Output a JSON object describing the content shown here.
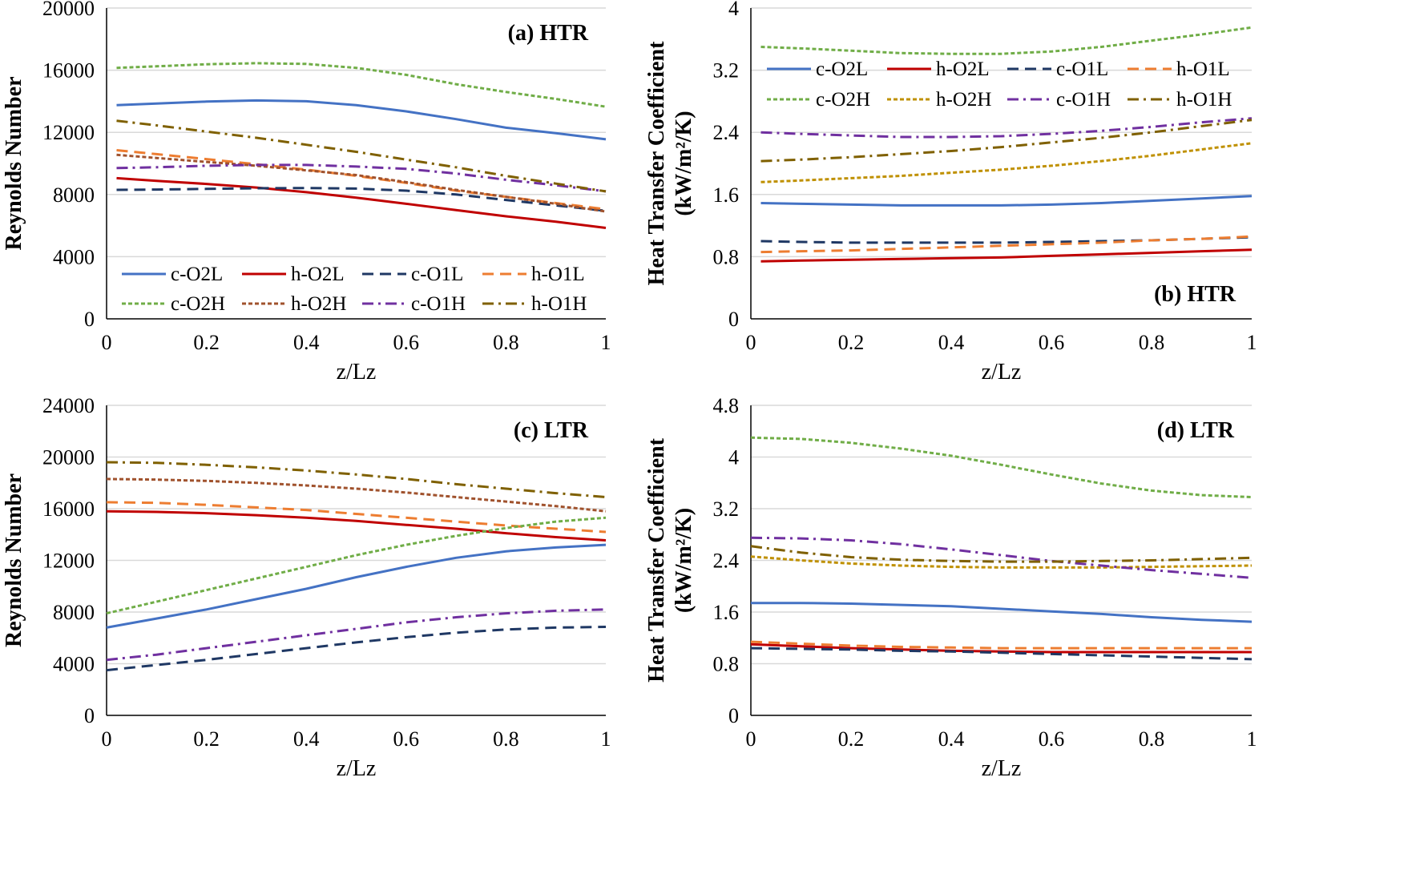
{
  "chart_data": [
    {
      "id": "a",
      "type": "line",
      "panel_label": "(a) HTR",
      "panel_label_pos": "top-right",
      "xlabel": "z/Lz",
      "ylabel": "Reynolds Number",
      "ylabel_lines": [
        "Reynolds Number"
      ],
      "xlim": [
        0,
        1
      ],
      "ylim": [
        0,
        20000
      ],
      "xticks": [
        "0",
        "0.2",
        "0.4",
        "0.6",
        "0.8",
        "1"
      ],
      "yticks": [
        "0",
        "4000",
        "8000",
        "12000",
        "16000",
        "20000"
      ],
      "legend_pos": "bottom",
      "x": [
        0.02,
        0.1,
        0.2,
        0.3,
        0.4,
        0.5,
        0.6,
        0.7,
        0.8,
        0.9,
        1.0
      ],
      "series": [
        {
          "name": "c-O2L",
          "style": "solid",
          "color": "#4472c4",
          "values": [
            13750,
            13850,
            13980,
            14050,
            14000,
            13750,
            13350,
            12850,
            12300,
            11950,
            11550
          ]
        },
        {
          "name": "h-O2L",
          "style": "solid",
          "color": "#c00000",
          "values": [
            9050,
            8880,
            8680,
            8450,
            8150,
            7800,
            7400,
            7000,
            6600,
            6250,
            5850
          ]
        },
        {
          "name": "c-O1L",
          "style": "dash",
          "color": "#1f3864",
          "values": [
            8300,
            8320,
            8360,
            8400,
            8420,
            8380,
            8250,
            8000,
            7650,
            7300,
            6950
          ]
        },
        {
          "name": "h-O1L",
          "style": "dash",
          "color": "#ed7d31",
          "values": [
            10850,
            10600,
            10280,
            9950,
            9600,
            9200,
            8750,
            8250,
            7850,
            7450,
            7050
          ]
        },
        {
          "name": "c-O2H",
          "style": "dotted-dash",
          "color": "#70ad47",
          "values": [
            16150,
            16250,
            16380,
            16450,
            16400,
            16150,
            15700,
            15100,
            14600,
            14150,
            13650
          ]
        },
        {
          "name": "h-O2H",
          "style": "dotted-dash",
          "color": "#a0522d",
          "values": [
            10550,
            10350,
            10100,
            9850,
            9550,
            9250,
            8800,
            8300,
            7850,
            7400,
            6900
          ]
        },
        {
          "name": "c-O1H",
          "style": "dashdot",
          "color": "#7030a0",
          "values": [
            9700,
            9750,
            9850,
            9900,
            9900,
            9800,
            9650,
            9350,
            8950,
            8600,
            8200
          ]
        },
        {
          "name": "h-O1H",
          "style": "dashdot",
          "color": "#7f6000",
          "values": [
            12750,
            12450,
            12050,
            11650,
            11200,
            10750,
            10250,
            9750,
            9200,
            8700,
            8200
          ]
        }
      ]
    },
    {
      "id": "b",
      "type": "line",
      "panel_label": "(b) HTR",
      "panel_label_pos": "bottom-right",
      "xlabel": "z/Lz",
      "ylabel": "Heat Transfer Coefficient (kW/m²/K)",
      "ylabel_lines": [
        "Heat Transfer Coefficient",
        "(kW/m²/K)"
      ],
      "xlim": [
        0,
        1
      ],
      "ylim": [
        0,
        4
      ],
      "xticks": [
        "0",
        "0.2",
        "0.4",
        "0.6",
        "0.8",
        "1"
      ],
      "yticks": [
        "0",
        "0.8",
        "1.6",
        "2.4",
        "3.2",
        "4"
      ],
      "legend_pos": "top",
      "x": [
        0.02,
        0.1,
        0.2,
        0.3,
        0.4,
        0.5,
        0.6,
        0.7,
        0.8,
        0.9,
        1.0
      ],
      "series": [
        {
          "name": "c-O2L",
          "style": "solid",
          "color": "#4472c4",
          "values": [
            1.49,
            1.48,
            1.47,
            1.46,
            1.46,
            1.46,
            1.47,
            1.49,
            1.52,
            1.55,
            1.58
          ]
        },
        {
          "name": "h-O2L",
          "style": "solid",
          "color": "#c00000",
          "values": [
            0.74,
            0.75,
            0.76,
            0.77,
            0.78,
            0.79,
            0.81,
            0.83,
            0.85,
            0.87,
            0.89
          ]
        },
        {
          "name": "c-O1L",
          "style": "dash",
          "color": "#1f3864",
          "values": [
            1.0,
            0.99,
            0.98,
            0.98,
            0.98,
            0.98,
            0.99,
            1.0,
            1.01,
            1.03,
            1.05
          ]
        },
        {
          "name": "h-O1L",
          "style": "dash",
          "color": "#ed7d31",
          "values": [
            0.86,
            0.87,
            0.88,
            0.9,
            0.92,
            0.94,
            0.96,
            0.98,
            1.01,
            1.03,
            1.06
          ]
        },
        {
          "name": "c-O2H",
          "style": "dotted-dash",
          "color": "#70ad47",
          "values": [
            3.5,
            3.48,
            3.45,
            3.42,
            3.41,
            3.41,
            3.44,
            3.5,
            3.58,
            3.66,
            3.75
          ]
        },
        {
          "name": "h-O2H",
          "style": "dotted-dash",
          "color": "#bf9000",
          "values": [
            1.76,
            1.78,
            1.81,
            1.84,
            1.88,
            1.92,
            1.97,
            2.03,
            2.1,
            2.18,
            2.26
          ]
        },
        {
          "name": "c-O1H",
          "style": "dashdot",
          "color": "#7030a0",
          "values": [
            2.4,
            2.38,
            2.36,
            2.34,
            2.34,
            2.35,
            2.38,
            2.42,
            2.47,
            2.53,
            2.58
          ]
        },
        {
          "name": "h-O1H",
          "style": "dashdot",
          "color": "#7f6000",
          "values": [
            2.03,
            2.05,
            2.08,
            2.12,
            2.16,
            2.21,
            2.27,
            2.33,
            2.4,
            2.48,
            2.56
          ]
        }
      ]
    },
    {
      "id": "c",
      "type": "line",
      "panel_label": "(c) LTR",
      "panel_label_pos": "top-right",
      "xlabel": "z/Lz",
      "ylabel": "Reynolds Number",
      "ylabel_lines": [
        "Reynolds Number"
      ],
      "xlim": [
        0,
        1
      ],
      "ylim": [
        0,
        24000
      ],
      "xticks": [
        "0",
        "0.2",
        "0.4",
        "0.6",
        "0.8",
        "1"
      ],
      "yticks": [
        "0",
        "4000",
        "8000",
        "12000",
        "16000",
        "20000",
        "24000"
      ],
      "legend_pos": "none",
      "x": [
        0.0,
        0.1,
        0.2,
        0.3,
        0.4,
        0.5,
        0.6,
        0.7,
        0.8,
        0.9,
        1.0
      ],
      "series": [
        {
          "name": "c-O2L",
          "style": "solid",
          "color": "#4472c4",
          "values": [
            6800,
            7500,
            8200,
            9000,
            9800,
            10700,
            11500,
            12200,
            12700,
            13000,
            13200
          ]
        },
        {
          "name": "h-O2L",
          "style": "solid",
          "color": "#c00000",
          "values": [
            15800,
            15750,
            15650,
            15500,
            15300,
            15050,
            14750,
            14450,
            14100,
            13800,
            13550
          ]
        },
        {
          "name": "c-O1L",
          "style": "dash",
          "color": "#1f3864",
          "values": [
            3500,
            3900,
            4300,
            4750,
            5200,
            5650,
            6050,
            6400,
            6650,
            6800,
            6850
          ]
        },
        {
          "name": "h-O1L",
          "style": "dash",
          "color": "#ed7d31",
          "values": [
            16500,
            16450,
            16300,
            16100,
            15900,
            15600,
            15300,
            15000,
            14700,
            14450,
            14200
          ]
        },
        {
          "name": "c-O2H",
          "style": "dotted-dash",
          "color": "#70ad47",
          "values": [
            7900,
            8800,
            9700,
            10600,
            11500,
            12400,
            13200,
            13900,
            14500,
            15000,
            15300
          ]
        },
        {
          "name": "h-O2H",
          "style": "dotted-dash",
          "color": "#a0522d",
          "values": [
            18300,
            18250,
            18150,
            18000,
            17800,
            17550,
            17250,
            16900,
            16550,
            16200,
            15800
          ]
        },
        {
          "name": "c-O1H",
          "style": "dashdot",
          "color": "#7030a0",
          "values": [
            4300,
            4700,
            5200,
            5700,
            6200,
            6700,
            7200,
            7600,
            7900,
            8100,
            8200
          ]
        },
        {
          "name": "h-O1H",
          "style": "dashdot",
          "color": "#7f6000",
          "values": [
            19600,
            19550,
            19400,
            19200,
            18950,
            18650,
            18300,
            17900,
            17550,
            17200,
            16900
          ]
        }
      ]
    },
    {
      "id": "d",
      "type": "line",
      "panel_label": "(d) LTR",
      "panel_label_pos": "top-right",
      "xlabel": "z/Lz",
      "ylabel": "Heat Transfer Coefficient (kW/m²/K)",
      "ylabel_lines": [
        "Heat Transfer Coefficient",
        "(kW/m²/K)"
      ],
      "xlim": [
        0,
        1
      ],
      "ylim": [
        0,
        4.8
      ],
      "xticks": [
        "0",
        "0.2",
        "0.4",
        "0.6",
        "0.8",
        "1"
      ],
      "yticks": [
        "0",
        "0.8",
        "1.6",
        "2.4",
        "3.2",
        "4",
        "4.8"
      ],
      "legend_pos": "none",
      "x": [
        0.0,
        0.1,
        0.2,
        0.3,
        0.4,
        0.5,
        0.6,
        0.7,
        0.8,
        0.9,
        1.0
      ],
      "series": [
        {
          "name": "c-O2L",
          "style": "solid",
          "color": "#4472c4",
          "values": [
            1.74,
            1.74,
            1.73,
            1.71,
            1.69,
            1.65,
            1.61,
            1.57,
            1.52,
            1.48,
            1.45
          ]
        },
        {
          "name": "h-O2L",
          "style": "solid",
          "color": "#c00000",
          "values": [
            1.1,
            1.07,
            1.04,
            1.02,
            1.0,
            0.99,
            0.98,
            0.98,
            0.98,
            0.98,
            0.98
          ]
        },
        {
          "name": "c-O1L",
          "style": "dash",
          "color": "#1f3864",
          "values": [
            1.04,
            1.03,
            1.02,
            1.0,
            0.99,
            0.97,
            0.95,
            0.93,
            0.91,
            0.89,
            0.87
          ]
        },
        {
          "name": "h-O1L",
          "style": "dash",
          "color": "#ed7d31",
          "values": [
            1.14,
            1.11,
            1.08,
            1.06,
            1.05,
            1.04,
            1.04,
            1.04,
            1.04,
            1.04,
            1.04
          ]
        },
        {
          "name": "c-O2H",
          "style": "dotted-dash",
          "color": "#70ad47",
          "values": [
            4.3,
            4.28,
            4.22,
            4.13,
            4.02,
            3.88,
            3.73,
            3.59,
            3.48,
            3.41,
            3.38
          ]
        },
        {
          "name": "h-O2H",
          "style": "dotted-dash",
          "color": "#bf9000",
          "values": [
            2.46,
            2.4,
            2.35,
            2.32,
            2.3,
            2.29,
            2.29,
            2.29,
            2.3,
            2.31,
            2.32
          ]
        },
        {
          "name": "c-O1H",
          "style": "dashdot",
          "color": "#7030a0",
          "values": [
            2.75,
            2.74,
            2.71,
            2.65,
            2.57,
            2.48,
            2.39,
            2.32,
            2.25,
            2.19,
            2.13
          ]
        },
        {
          "name": "h-O1H",
          "style": "dashdot",
          "color": "#7f6000",
          "values": [
            2.62,
            2.52,
            2.45,
            2.41,
            2.39,
            2.38,
            2.38,
            2.39,
            2.4,
            2.42,
            2.44
          ]
        }
      ]
    }
  ]
}
